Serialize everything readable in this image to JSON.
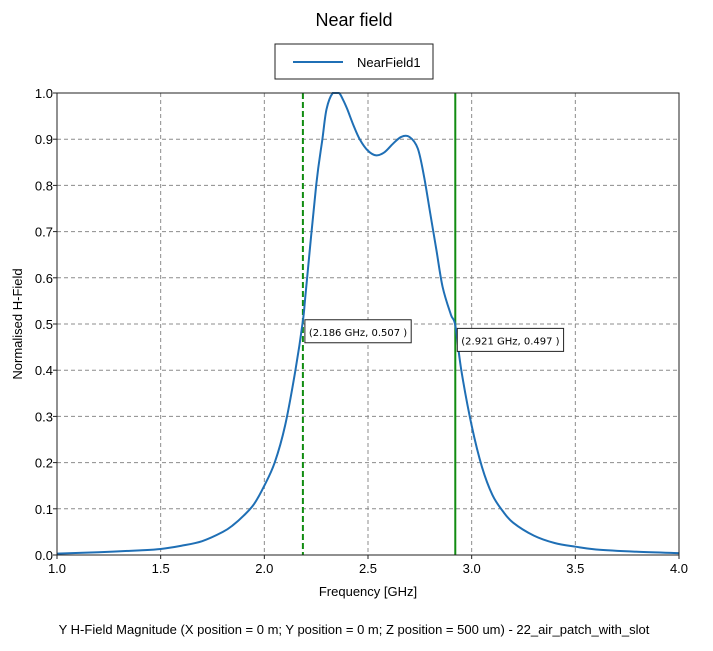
{
  "chart_data": {
    "type": "line",
    "title": "Near field",
    "xlabel": "Frequency [GHz]",
    "ylabel": "Normalised H-Field",
    "caption": "Y H-Field Magnitude (X position = 0 m; Y position = 0 m; Z position = 500 um) - 22_air_patch_with_slot",
    "xlim": [
      1.0,
      4.0
    ],
    "ylim": [
      0.0,
      1.0
    ],
    "x_ticks": [
      "1.0",
      "1.5",
      "2.0",
      "2.5",
      "3.0",
      "3.5",
      "4.0"
    ],
    "y_ticks": [
      "0.0",
      "0.1",
      "0.2",
      "0.3",
      "0.4",
      "0.5",
      "0.6",
      "0.7",
      "0.8",
      "0.9",
      "1.0"
    ],
    "grid": true,
    "legend_position": "top-center",
    "series": [
      {
        "name": "NearField1",
        "color": "#1f6fb5",
        "x": [
          1.0,
          1.2,
          1.4,
          1.5,
          1.6,
          1.7,
          1.8,
          1.85,
          1.9,
          1.95,
          2.0,
          2.05,
          2.1,
          2.15,
          2.186,
          2.2,
          2.25,
          2.28,
          2.3,
          2.33,
          2.36,
          2.38,
          2.4,
          2.43,
          2.46,
          2.5,
          2.54,
          2.58,
          2.62,
          2.66,
          2.7,
          2.74,
          2.77,
          2.8,
          2.83,
          2.86,
          2.9,
          2.921,
          2.95,
          3.0,
          3.05,
          3.1,
          3.15,
          3.2,
          3.3,
          3.4,
          3.5,
          3.6,
          3.8,
          4.0
        ],
        "y": [
          0.003,
          0.006,
          0.01,
          0.013,
          0.02,
          0.03,
          0.05,
          0.065,
          0.085,
          0.11,
          0.15,
          0.2,
          0.28,
          0.4,
          0.507,
          0.57,
          0.8,
          0.9,
          0.965,
          1.0,
          1.0,
          0.985,
          0.965,
          0.93,
          0.9,
          0.875,
          0.865,
          0.872,
          0.89,
          0.905,
          0.905,
          0.88,
          0.82,
          0.74,
          0.66,
          0.58,
          0.52,
          0.497,
          0.4,
          0.28,
          0.19,
          0.13,
          0.095,
          0.07,
          0.042,
          0.026,
          0.018,
          0.012,
          0.007,
          0.004
        ]
      }
    ],
    "markers": [
      {
        "x": 2.186,
        "y": 0.507,
        "label": "(2.186 GHz, 0.507 )",
        "style": "dashed",
        "color": "#118c11"
      },
      {
        "x": 2.921,
        "y": 0.497,
        "label": "(2.921 GHz, 0.497 )",
        "style": "solid",
        "color": "#118c11"
      }
    ]
  }
}
